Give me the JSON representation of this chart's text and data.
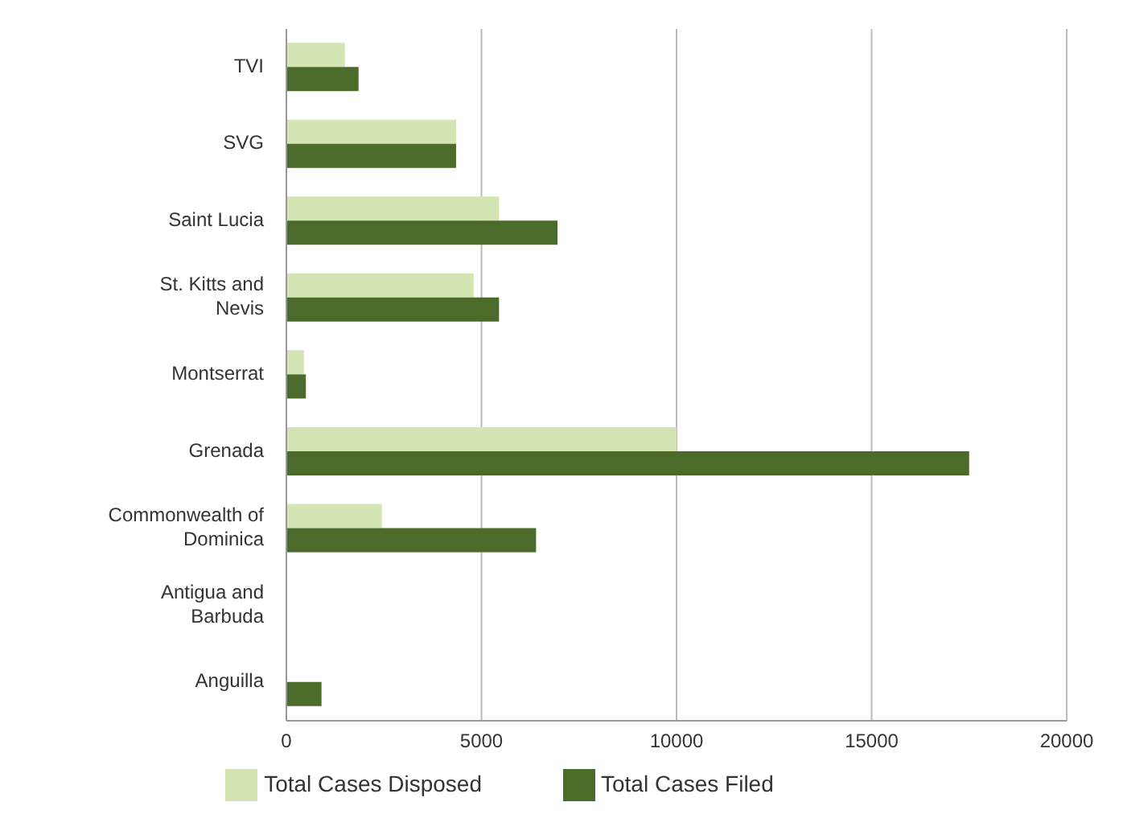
{
  "chart_data": {
    "type": "bar",
    "orientation": "horizontal",
    "categories": [
      "TVI",
      "SVG",
      "Saint Lucia",
      "St. Kitts and Nevis",
      "Montserrat",
      "Grenada",
      "Commonwealth of Dominica",
      "Antigua and Barbuda",
      "Anguilla"
    ],
    "series": [
      {
        "name": "Total Cases Disposed",
        "color": "#d3e5b3",
        "values": [
          1500,
          4350,
          5450,
          4800,
          450,
          10000,
          2450,
          null,
          null
        ]
      },
      {
        "name": "Total Cases Filed",
        "color": "#4b6b2b",
        "values": [
          1850,
          4350,
          6950,
          5450,
          500,
          17500,
          6400,
          null,
          900
        ]
      }
    ],
    "xlim": [
      0,
      20000
    ],
    "xticks": [
      0,
      5000,
      10000,
      15000,
      20000
    ],
    "grid": "x",
    "legend": "bottom"
  }
}
